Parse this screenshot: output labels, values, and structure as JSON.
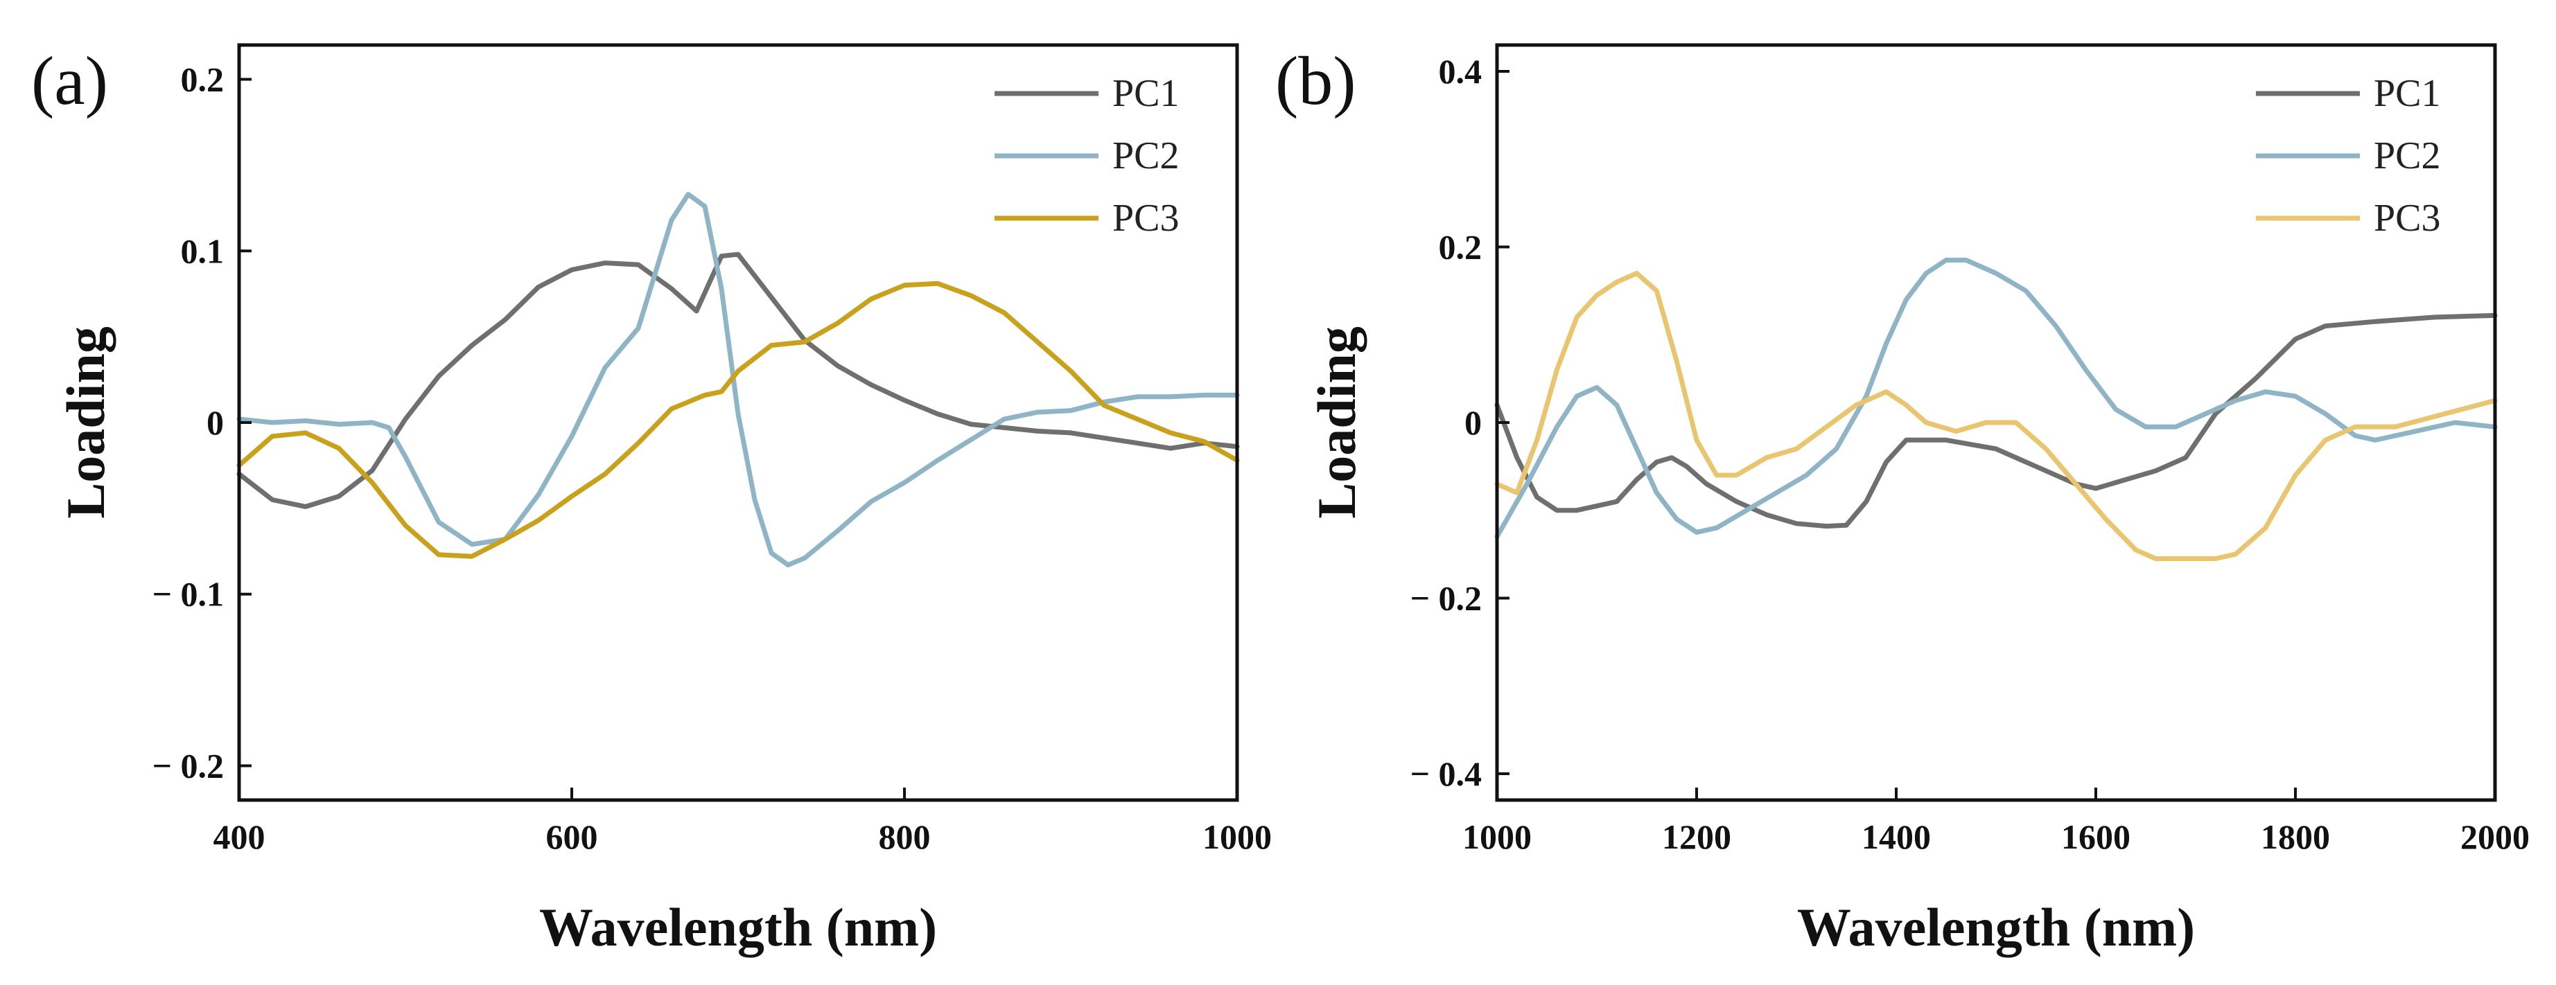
{
  "chart_data": [
    {
      "type": "line",
      "panel_label": "(a)",
      "xlabel": "Wavelength (nm)",
      "ylabel": "Loading",
      "xlim": [
        400,
        1000
      ],
      "ylim": [
        -0.22,
        0.22
      ],
      "xticks": [
        400,
        600,
        800,
        1000
      ],
      "xtick_labels": [
        "400",
        "600",
        "800",
        "1000"
      ],
      "yticks": [
        0.2,
        0.1,
        0,
        -0.1,
        -0.2
      ],
      "ytick_labels": [
        "0.2",
        "0.1",
        "0",
        "− 0.1",
        "− 0.2"
      ],
      "legend_position": "top-right",
      "series": [
        {
          "name": "PC1",
          "color": "#6f6f6f",
          "x": [
            400,
            420,
            440,
            460,
            480,
            500,
            520,
            540,
            560,
            580,
            600,
            620,
            640,
            660,
            675,
            690,
            700,
            720,
            740,
            760,
            780,
            800,
            820,
            840,
            860,
            880,
            900,
            920,
            940,
            960,
            980,
            1000
          ],
          "y": [
            -0.03,
            -0.045,
            -0.049,
            -0.043,
            -0.028,
            0.002,
            0.027,
            0.045,
            0.06,
            0.079,
            0.089,
            0.093,
            0.092,
            0.078,
            0.065,
            0.097,
            0.098,
            0.073,
            0.048,
            0.033,
            0.022,
            0.013,
            0.005,
            -0.001,
            -0.003,
            -0.005,
            -0.006,
            -0.009,
            -0.012,
            -0.015,
            -0.012,
            -0.014
          ]
        },
        {
          "name": "PC2",
          "color": "#8fb4c6",
          "x": [
            400,
            420,
            440,
            460,
            480,
            490,
            500,
            520,
            540,
            560,
            580,
            600,
            620,
            640,
            660,
            670,
            680,
            690,
            700,
            710,
            720,
            730,
            740,
            760,
            780,
            800,
            820,
            840,
            860,
            880,
            900,
            920,
            940,
            960,
            980,
            1000
          ],
          "y": [
            0.002,
            0.0,
            0.001,
            -0.001,
            0.0,
            -0.003,
            -0.02,
            -0.058,
            -0.071,
            -0.068,
            -0.042,
            -0.008,
            0.032,
            0.055,
            0.118,
            0.133,
            0.126,
            0.078,
            0.005,
            -0.045,
            -0.076,
            -0.083,
            -0.079,
            -0.063,
            -0.046,
            -0.035,
            -0.022,
            -0.01,
            0.002,
            0.006,
            0.007,
            0.012,
            0.015,
            0.015,
            0.016,
            0.016
          ]
        },
        {
          "name": "PC3",
          "color": "#c9a11c",
          "x": [
            400,
            420,
            440,
            460,
            480,
            500,
            520,
            540,
            560,
            580,
            600,
            620,
            640,
            660,
            680,
            690,
            700,
            720,
            740,
            760,
            780,
            800,
            820,
            840,
            860,
            880,
            900,
            920,
            940,
            960,
            980,
            1000
          ],
          "y": [
            -0.025,
            -0.008,
            -0.006,
            -0.015,
            -0.035,
            -0.06,
            -0.077,
            -0.078,
            -0.068,
            -0.057,
            -0.043,
            -0.03,
            -0.012,
            0.008,
            0.016,
            0.018,
            0.03,
            0.045,
            0.047,
            0.058,
            0.072,
            0.08,
            0.081,
            0.074,
            0.064,
            0.047,
            0.03,
            0.01,
            0.002,
            -0.006,
            -0.011,
            -0.022
          ]
        }
      ]
    },
    {
      "type": "line",
      "panel_label": "(b)",
      "xlabel": "Wavelength (nm)",
      "ylabel": "Loading",
      "xlim": [
        1000,
        2000
      ],
      "ylim": [
        -0.43,
        0.43
      ],
      "xticks": [
        1000,
        1200,
        1400,
        1600,
        1800,
        2000
      ],
      "xtick_labels": [
        "1000",
        "1200",
        "1400",
        "1600",
        "1800",
        "2000"
      ],
      "yticks": [
        0.4,
        0.2,
        0,
        -0.2,
        -0.4
      ],
      "ytick_labels": [
        "0.4",
        "0.2",
        "0",
        "− 0.2",
        "− 0.4"
      ],
      "legend_position": "top-right",
      "series": [
        {
          "name": "PC1",
          "color": "#6f6f6f",
          "x": [
            1000,
            1020,
            1040,
            1060,
            1080,
            1100,
            1120,
            1140,
            1160,
            1175,
            1190,
            1210,
            1240,
            1270,
            1300,
            1330,
            1350,
            1370,
            1390,
            1410,
            1450,
            1500,
            1550,
            1580,
            1600,
            1630,
            1660,
            1690,
            1720,
            1760,
            1800,
            1830,
            1880,
            1940,
            2000
          ],
          "y": [
            0.02,
            -0.04,
            -0.085,
            -0.1,
            -0.1,
            -0.095,
            -0.09,
            -0.065,
            -0.045,
            -0.04,
            -0.05,
            -0.07,
            -0.09,
            -0.105,
            -0.115,
            -0.118,
            -0.117,
            -0.09,
            -0.045,
            -0.02,
            -0.02,
            -0.03,
            -0.055,
            -0.07,
            -0.075,
            -0.065,
            -0.055,
            -0.04,
            0.01,
            0.05,
            0.095,
            0.11,
            0.115,
            0.12,
            0.122
          ]
        },
        {
          "name": "PC2",
          "color": "#8fb4c6",
          "x": [
            1000,
            1030,
            1060,
            1080,
            1100,
            1120,
            1140,
            1160,
            1180,
            1200,
            1220,
            1250,
            1280,
            1310,
            1340,
            1370,
            1390,
            1410,
            1430,
            1450,
            1470,
            1500,
            1530,
            1560,
            1590,
            1620,
            1650,
            1680,
            1710,
            1740,
            1770,
            1800,
            1830,
            1860,
            1880,
            1920,
            1960,
            2000
          ],
          "y": [
            -0.13,
            -0.07,
            -0.005,
            0.03,
            0.04,
            0.02,
            -0.03,
            -0.08,
            -0.11,
            -0.125,
            -0.12,
            -0.1,
            -0.08,
            -0.06,
            -0.03,
            0.03,
            0.09,
            0.14,
            0.17,
            0.185,
            0.185,
            0.17,
            0.15,
            0.11,
            0.06,
            0.015,
            -0.005,
            -0.005,
            0.01,
            0.025,
            0.035,
            0.03,
            0.01,
            -0.015,
            -0.02,
            -0.01,
            0.0,
            -0.005
          ]
        },
        {
          "name": "PC3",
          "color": "#e8c56e",
          "x": [
            1000,
            1020,
            1040,
            1060,
            1080,
            1100,
            1120,
            1140,
            1160,
            1180,
            1200,
            1220,
            1240,
            1270,
            1300,
            1330,
            1360,
            1390,
            1410,
            1430,
            1460,
            1490,
            1520,
            1550,
            1580,
            1610,
            1640,
            1660,
            1690,
            1720,
            1740,
            1770,
            1800,
            1830,
            1860,
            1900,
            1950,
            2000
          ],
          "y": [
            -0.07,
            -0.08,
            -0.02,
            0.06,
            0.12,
            0.145,
            0.16,
            0.17,
            0.15,
            0.07,
            -0.02,
            -0.06,
            -0.06,
            -0.04,
            -0.03,
            -0.005,
            0.02,
            0.035,
            0.02,
            0.0,
            -0.01,
            0.0,
            0.0,
            -0.03,
            -0.07,
            -0.11,
            -0.145,
            -0.155,
            -0.155,
            -0.155,
            -0.15,
            -0.12,
            -0.06,
            -0.02,
            -0.005,
            -0.005,
            0.01,
            0.025
          ]
        }
      ]
    }
  ]
}
